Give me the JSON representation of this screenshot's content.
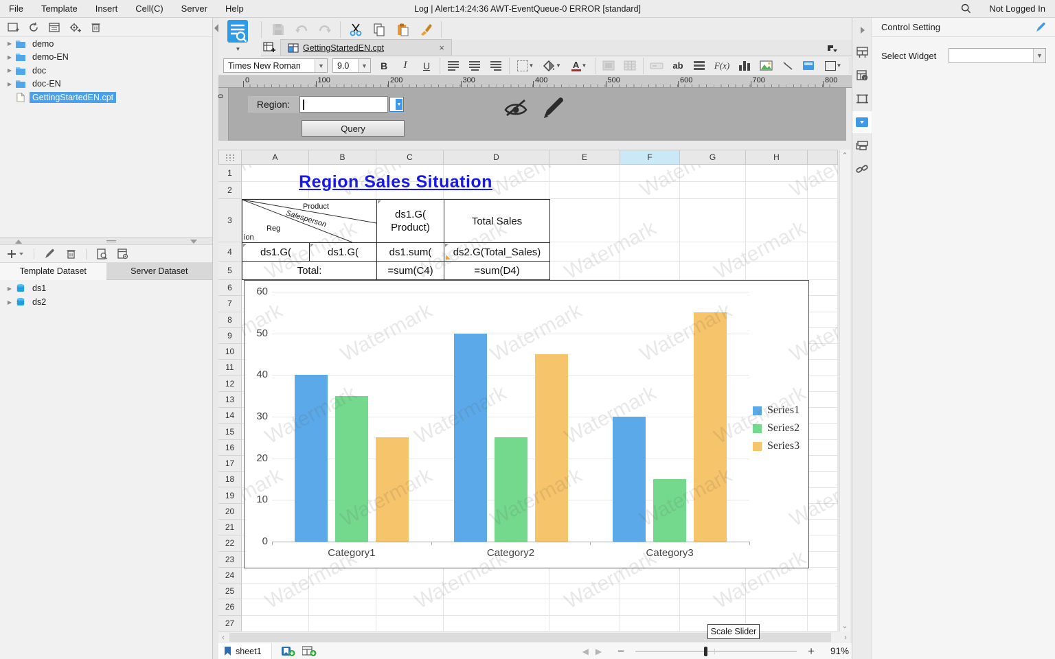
{
  "menubar": {
    "items": [
      "File",
      "Template",
      "Insert",
      "Cell(C)",
      "Server",
      "Help"
    ],
    "status_text": "Log | Alert:14:24:36 AWT-EventQueue-0 ERROR [standard]",
    "login_status": "Not Logged In"
  },
  "left_panel": {
    "file_tree": [
      {
        "label": "demo",
        "type": "folder",
        "selected": false
      },
      {
        "label": "demo-EN",
        "type": "folder",
        "selected": false
      },
      {
        "label": "doc",
        "type": "folder",
        "selected": false
      },
      {
        "label": "doc-EN",
        "type": "folder",
        "selected": false
      },
      {
        "label": "GettingStartedEN.cpt",
        "type": "file",
        "selected": true
      }
    ],
    "dataset_tabs": [
      {
        "label": "Template Dataset",
        "active": true
      },
      {
        "label": "Server Dataset",
        "active": false
      }
    ],
    "datasets": [
      "ds1",
      "ds2"
    ]
  },
  "document_tab": {
    "title": "GettingStartedEN.cpt"
  },
  "toolbar": {
    "font_name": "Times New Roman",
    "font_size": "9.0",
    "bold_label": "B",
    "italic_label": "I",
    "underline_label": "U",
    "text_label": "ab",
    "formula_label": "F(x)"
  },
  "ruler": {
    "ticks": [
      "0",
      "100",
      "200",
      "300",
      "400",
      "500",
      "600",
      "700",
      "800"
    ],
    "origin_label": "0"
  },
  "param_pane": {
    "region_label": "Region:",
    "query_button": "Query"
  },
  "sheet": {
    "columns": [
      "A",
      "B",
      "C",
      "D",
      "E",
      "F",
      "G",
      "H"
    ],
    "highlighted_column": "F",
    "row_count": 27,
    "report": {
      "title": "Region Sales Situation",
      "diagonal_header": {
        "top": "Product",
        "middle": "Salesperson",
        "bottom_line1": "Reg",
        "bottom_line2": "ion"
      },
      "c3_line1": "ds1.G(",
      "c3_line2": "Product)",
      "d3": "Total Sales",
      "a4": "ds1.G(",
      "b4": "ds1.G(",
      "c4": "ds1.sum(",
      "d4": "ds2.G(Total_Sales)",
      "a5": "Total:",
      "c5": "=sum(C4)",
      "d5": "=sum(D4)"
    }
  },
  "chart_data": {
    "type": "bar",
    "categories": [
      "Category1",
      "Category2",
      "Category3"
    ],
    "series": [
      {
        "name": "Series1",
        "color": "#5BA9E8",
        "values": [
          40,
          50,
          30
        ]
      },
      {
        "name": "Series2",
        "color": "#74D98D",
        "values": [
          35,
          25,
          15
        ]
      },
      {
        "name": "Series3",
        "color": "#F6C46B",
        "values": [
          25,
          45,
          55
        ]
      }
    ],
    "title": "",
    "xlabel": "",
    "ylabel": "",
    "ylim": [
      0,
      60
    ],
    "yticks": [
      0,
      10,
      20,
      30,
      40,
      50,
      60
    ],
    "legend_position": "right",
    "grid": true
  },
  "bottom_bar": {
    "sheet_tab": "sheet1",
    "zoom_level": "91%",
    "scale_tooltip": "Scale Slider"
  },
  "right_panel": {
    "title": "Control Setting",
    "select_widget_label": "Select Widget",
    "select_widget_value": ""
  },
  "watermark_text": "Watermark",
  "icons": {
    "search": "magnifier",
    "preview": "blue-document-magnifier",
    "cut": "scissors",
    "eye-hide": "eye-with-slash",
    "edit": "pencil",
    "dataset": "blue-database-cylinder",
    "folder": "blue-folder",
    "widget-settings": "blue-square-dropdown",
    "hyperlink": "chain-link"
  },
  "colors": {
    "selection_blue": "#4D9FE8",
    "title_blue": "#1717E8",
    "column_highlight": "#CBE8F7",
    "param_pane_gray": "#ABABAB"
  }
}
